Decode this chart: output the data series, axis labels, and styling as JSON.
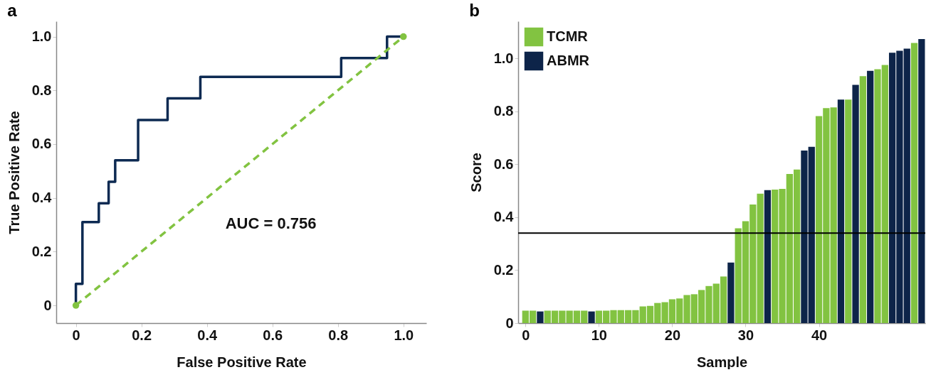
{
  "chart_data": [
    {
      "type": "step",
      "title": "a",
      "xlabel": "False Positive Rate",
      "ylabel": "True Positive Rate",
      "xlim": [
        -0.06,
        1.07
      ],
      "ylim": [
        -0.066,
        1.057
      ],
      "xticks": [
        0,
        0.2,
        0.4,
        0.6,
        0.8,
        {
          "value": 1,
          "label": "1.0"
        }
      ],
      "yticks": [
        0,
        0.2,
        0.4,
        0.6,
        0.8,
        {
          "value": 1,
          "label": "1.0"
        }
      ],
      "grid": false,
      "legend": false,
      "annotations": [
        "AUC = 0.756"
      ],
      "series": [
        {
          "type": "step",
          "color": "#0d2a52",
          "marker": "none",
          "line_style": "solid",
          "x": [
            0,
            0,
            0.02,
            0.07,
            0.1,
            0.12,
            0.19,
            0.28,
            0.38,
            0.81,
            0.95,
            1.0
          ],
          "values": [
            0,
            0.08,
            0.31,
            0.38,
            0.46,
            0.54,
            0.69,
            0.77,
            0.85,
            0.92,
            1.0,
            1.0
          ]
        },
        {
          "type": "line",
          "color": "#82c341",
          "marker": "circle",
          "line_style": "dashed",
          "x": [
            0,
            1
          ],
          "values": [
            0,
            1
          ]
        }
      ]
    },
    {
      "type": "bar",
      "title": "b",
      "xlabel": "Sample",
      "ylabel": "Score",
      "x": [
        0,
        1,
        2,
        3,
        4,
        5,
        6,
        7,
        8,
        9,
        10,
        11,
        12,
        13,
        14,
        15,
        16,
        17,
        18,
        19,
        20,
        21,
        22,
        23,
        24,
        25,
        26,
        27,
        28,
        29,
        30,
        31,
        32,
        33,
        34,
        35,
        36,
        37,
        38,
        39,
        40,
        41,
        42,
        43,
        44,
        45,
        46,
        47,
        48,
        49,
        50,
        51,
        52,
        53,
        54
      ],
      "xlim": [
        -1,
        54.5
      ],
      "ylim": [
        0,
        1.14
      ],
      "xticks": [
        0,
        10,
        20,
        30,
        40
      ],
      "yticks": [
        0,
        0.2,
        0.4,
        0.6,
        0.8,
        {
          "value": 1,
          "label": "1.0"
        }
      ],
      "grid": false,
      "legend": "top left",
      "ref_lines": [
        {
          "axis": "y",
          "value": 0.34,
          "color": "#000000"
        }
      ],
      "series": [
        {
          "name": "TCMR",
          "color": "#82c341",
          "values": [
            0.047,
            0.047,
            null,
            0.047,
            0.047,
            0.047,
            0.047,
            0.047,
            0.047,
            null,
            0.047,
            0.047,
            0.049,
            0.049,
            0.049,
            0.049,
            0.063,
            0.065,
            0.076,
            0.079,
            0.09,
            0.093,
            0.106,
            0.109,
            0.125,
            0.14,
            0.149,
            0.176,
            null,
            0.358,
            0.385,
            0.448,
            0.489,
            null,
            0.504,
            0.507,
            0.563,
            0.58,
            null,
            null,
            0.782,
            0.812,
            0.815,
            null,
            0.844,
            null,
            0.933,
            null,
            0.959,
            0.975,
            null,
            null,
            null,
            1.058,
            null
          ]
        },
        {
          "name": "ABMR",
          "color": "#0d2449",
          "values": [
            null,
            null,
            0.044,
            null,
            null,
            null,
            null,
            null,
            null,
            0.044,
            null,
            null,
            null,
            null,
            null,
            null,
            null,
            null,
            null,
            null,
            null,
            null,
            null,
            null,
            null,
            null,
            null,
            null,
            0.229,
            null,
            null,
            null,
            null,
            0.502,
            null,
            null,
            null,
            null,
            0.652,
            0.666,
            null,
            null,
            null,
            0.844,
            null,
            0.9,
            null,
            0.953,
            null,
            null,
            1.021,
            1.029,
            1.037,
            null,
            1.073
          ]
        }
      ]
    }
  ]
}
